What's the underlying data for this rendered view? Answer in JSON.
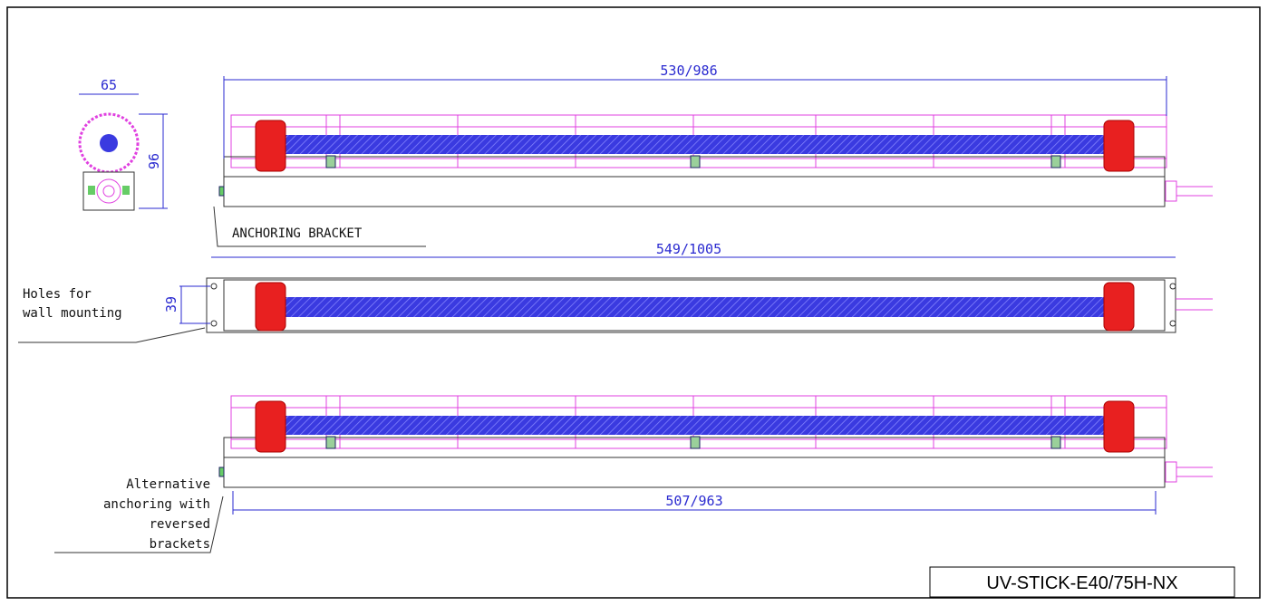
{
  "side_view": {
    "width": "65",
    "height": "96"
  },
  "top_view": {
    "length": "530/986",
    "bracket_label": "ANCHORING BRACKET"
  },
  "wall_view": {
    "length": "549/1005",
    "hole_spacing": "39",
    "holes_label": [
      "Holes for",
      "wall mounting"
    ]
  },
  "bottom_view": {
    "length": "507/963",
    "alt_label": [
      "Alternative",
      "anchoring with",
      "reversed",
      "brackets"
    ]
  },
  "model_box": {
    "model": "UV-STICK-E40/75H-NX"
  }
}
